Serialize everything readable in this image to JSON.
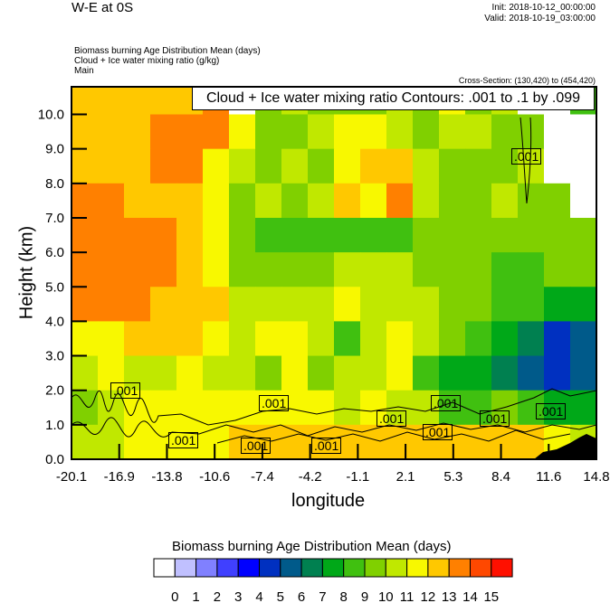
{
  "header": {
    "title": "W-E at 0S",
    "init": "Init: 2018-10-12_00:00:00",
    "valid": "Valid: 2018-10-19_03:00:00",
    "fields": [
      "Biomass burning Age Distribution Mean   (days)",
      "Cloud + Ice water mixing ratio   (g/kg)",
      "Main"
    ],
    "cross_section": "Cross-Section: (130,420) to (454,420)"
  },
  "chart_data": {
    "type": "heatmap",
    "title": "W-E at 0S",
    "xlabel": "longitude",
    "ylabel": "Height (km)",
    "xlim": [
      -20.1,
      14.8
    ],
    "ylim": [
      0,
      10.8
    ],
    "x_ticks": [
      "-20.1",
      "-16.9",
      "-13.8",
      "-10.6",
      "-7.4",
      "-4.2",
      "-1.1",
      "2.1",
      "5.3",
      "8.4",
      "11.6",
      "14.8"
    ],
    "y_ticks": [
      "0.0",
      "1.0",
      "2.0",
      "3.0",
      "4.0",
      "5.0",
      "6.0",
      "7.0",
      "8.0",
      "9.0",
      "10.0"
    ],
    "contour_title": "Cloud + Ice water mixing ratio Contours: .001 to .1 by .099",
    "contour_labels": [
      ".001",
      ".001",
      ".001",
      ".001",
      ".001",
      ".001",
      ".001",
      ".001",
      ".001",
      ".001",
      ".001"
    ],
    "colorbar": {
      "title": "Biomass burning Age Distribution Mean  (days)",
      "labels": [
        "0",
        "1",
        "2",
        "3",
        "4",
        "5",
        "6",
        "7",
        "8",
        "9",
        "10",
        "11",
        "12",
        "13",
        "14",
        "15"
      ],
      "colors": [
        "#ffffff",
        "#c0c0ff",
        "#8080ff",
        "#4040ff",
        "#0000ff",
        "#0030c0",
        "#005a8a",
        "#008050",
        "#00a818",
        "#40c010",
        "#80d000",
        "#c0e800",
        "#f8f800",
        "#ffc800",
        "#ff8000",
        "#ff4800",
        "#ff1000"
      ]
    },
    "field_note_rows_top_to_bottom_km": [
      "10-10.8",
      "9-10",
      "8-9",
      "7-8",
      "6-7",
      "5-6",
      "4-5",
      "3-4",
      "2-3",
      "1-2",
      "0-1"
    ],
    "field_bins": [
      [
        13,
        13,
        13,
        13,
        13,
        14,
        0,
        10,
        11,
        10,
        10,
        10,
        11,
        10,
        12,
        10,
        11,
        0,
        0,
        9
      ],
      [
        13,
        13,
        13,
        14,
        14,
        14,
        12,
        10,
        10,
        11,
        12,
        12,
        11,
        10,
        11,
        11,
        10,
        10,
        0,
        0
      ],
      [
        13,
        13,
        13,
        14,
        14,
        12,
        11,
        10,
        11,
        10,
        12,
        13,
        13,
        11,
        10,
        10,
        10,
        11,
        0,
        0
      ],
      [
        14,
        14,
        13,
        13,
        13,
        12,
        10,
        11,
        10,
        11,
        13,
        12,
        14,
        11,
        10,
        10,
        11,
        10,
        10,
        0
      ],
      [
        14,
        14,
        14,
        14,
        13,
        12,
        10,
        9,
        9,
        9,
        9,
        9,
        9,
        10,
        10,
        10,
        10,
        10,
        10,
        10
      ],
      [
        14,
        14,
        14,
        14,
        13,
        12,
        10,
        10,
        10,
        10,
        11,
        11,
        11,
        10,
        10,
        10,
        9,
        9,
        10,
        10
      ],
      [
        14,
        14,
        14,
        13,
        13,
        13,
        11,
        11,
        11,
        11,
        12,
        11,
        11,
        11,
        10,
        10,
        9,
        9,
        8,
        8
      ],
      [
        12,
        12,
        13,
        13,
        13,
        12,
        11,
        12,
        12,
        11,
        9,
        11,
        12,
        11,
        10,
        9,
        8,
        7,
        5,
        6
      ],
      [
        11,
        12,
        11,
        11,
        12,
        11,
        11,
        10,
        12,
        10,
        11,
        11,
        12,
        9,
        8,
        8,
        7,
        6,
        5,
        6
      ],
      [
        10,
        11,
        12,
        12,
        12,
        12,
        12,
        12,
        12,
        12,
        11,
        12,
        11,
        11,
        9,
        9,
        10,
        9,
        8,
        8
      ],
      [
        11,
        11,
        12,
        12,
        12,
        12,
        13,
        13,
        13,
        13,
        13,
        13,
        13,
        13,
        13,
        13,
        13,
        13,
        12,
        11
      ]
    ]
  }
}
